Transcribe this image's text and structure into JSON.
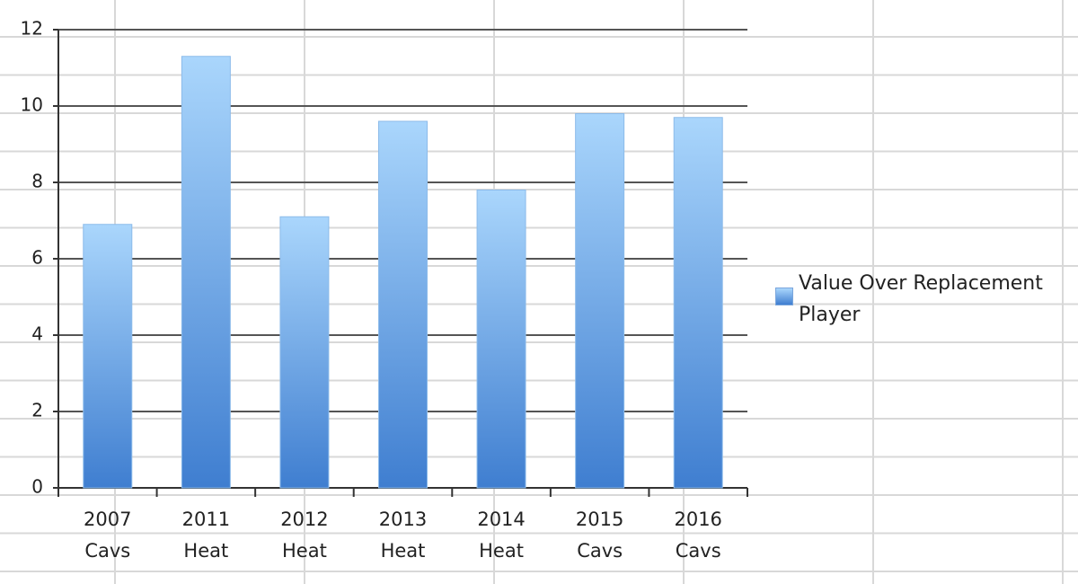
{
  "chart_data": {
    "type": "bar",
    "categories": [
      "2007 Cavs",
      "2011 Heat",
      "2012 Heat",
      "2013 Heat",
      "2014 Heat",
      "2015 Cavs",
      "2016 Cavs"
    ],
    "series": [
      {
        "name": "Value Over Replacement Player",
        "color": "#3f7ed0",
        "values": [
          6.9,
          11.3,
          7.1,
          9.6,
          7.8,
          9.8,
          9.7
        ]
      }
    ],
    "ylim": [
      0,
      12
    ],
    "yticks": [
      0,
      2,
      4,
      6,
      8,
      10,
      12
    ],
    "grid": true
  }
}
